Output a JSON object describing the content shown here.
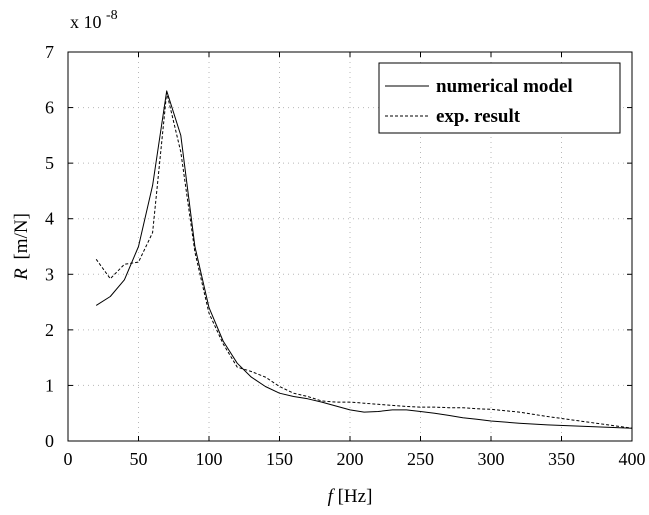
{
  "chart_data": {
    "type": "line",
    "xlabel_italic": "f",
    "xlabel_unit": "[Hz]",
    "ylabel_italic": "R",
    "ylabel_unit": "[m/N]",
    "multiplier_base": "x 10",
    "multiplier_exp": "-8",
    "xlim": [
      0,
      400
    ],
    "ylim": [
      0,
      7
    ],
    "xticks": [
      0,
      50,
      100,
      150,
      200,
      250,
      300,
      350,
      400
    ],
    "yticks": [
      0,
      1,
      2,
      3,
      4,
      5,
      6,
      7
    ],
    "grid": true,
    "legend_position": "top-right",
    "series": [
      {
        "name": "numerical model",
        "style": "solid",
        "x": [
          20,
          30,
          40,
          50,
          60,
          70,
          80,
          90,
          100,
          110,
          120,
          130,
          140,
          150,
          160,
          170,
          180,
          190,
          200,
          210,
          220,
          230,
          240,
          250,
          260,
          270,
          280,
          290,
          300,
          320,
          340,
          360,
          380,
          400
        ],
        "y": [
          2.44,
          2.6,
          2.9,
          3.5,
          4.6,
          6.3,
          5.5,
          3.5,
          2.4,
          1.8,
          1.4,
          1.15,
          0.98,
          0.86,
          0.8,
          0.76,
          0.7,
          0.63,
          0.56,
          0.52,
          0.53,
          0.56,
          0.56,
          0.53,
          0.5,
          0.46,
          0.42,
          0.39,
          0.36,
          0.32,
          0.29,
          0.27,
          0.25,
          0.23
        ]
      },
      {
        "name": "exp. result",
        "style": "dashed",
        "x": [
          20,
          30,
          40,
          50,
          60,
          70,
          80,
          90,
          100,
          110,
          120,
          130,
          140,
          150,
          160,
          170,
          180,
          190,
          200,
          210,
          220,
          230,
          240,
          250,
          260,
          270,
          280,
          290,
          300,
          320,
          340,
          360,
          380,
          400
        ],
        "y": [
          3.27,
          2.92,
          3.18,
          3.22,
          3.75,
          6.27,
          5.2,
          3.4,
          2.3,
          1.75,
          1.33,
          1.25,
          1.15,
          0.98,
          0.86,
          0.8,
          0.72,
          0.7,
          0.7,
          0.68,
          0.66,
          0.64,
          0.62,
          0.61,
          0.61,
          0.6,
          0.6,
          0.58,
          0.57,
          0.52,
          0.44,
          0.37,
          0.3,
          0.23
        ]
      }
    ]
  }
}
